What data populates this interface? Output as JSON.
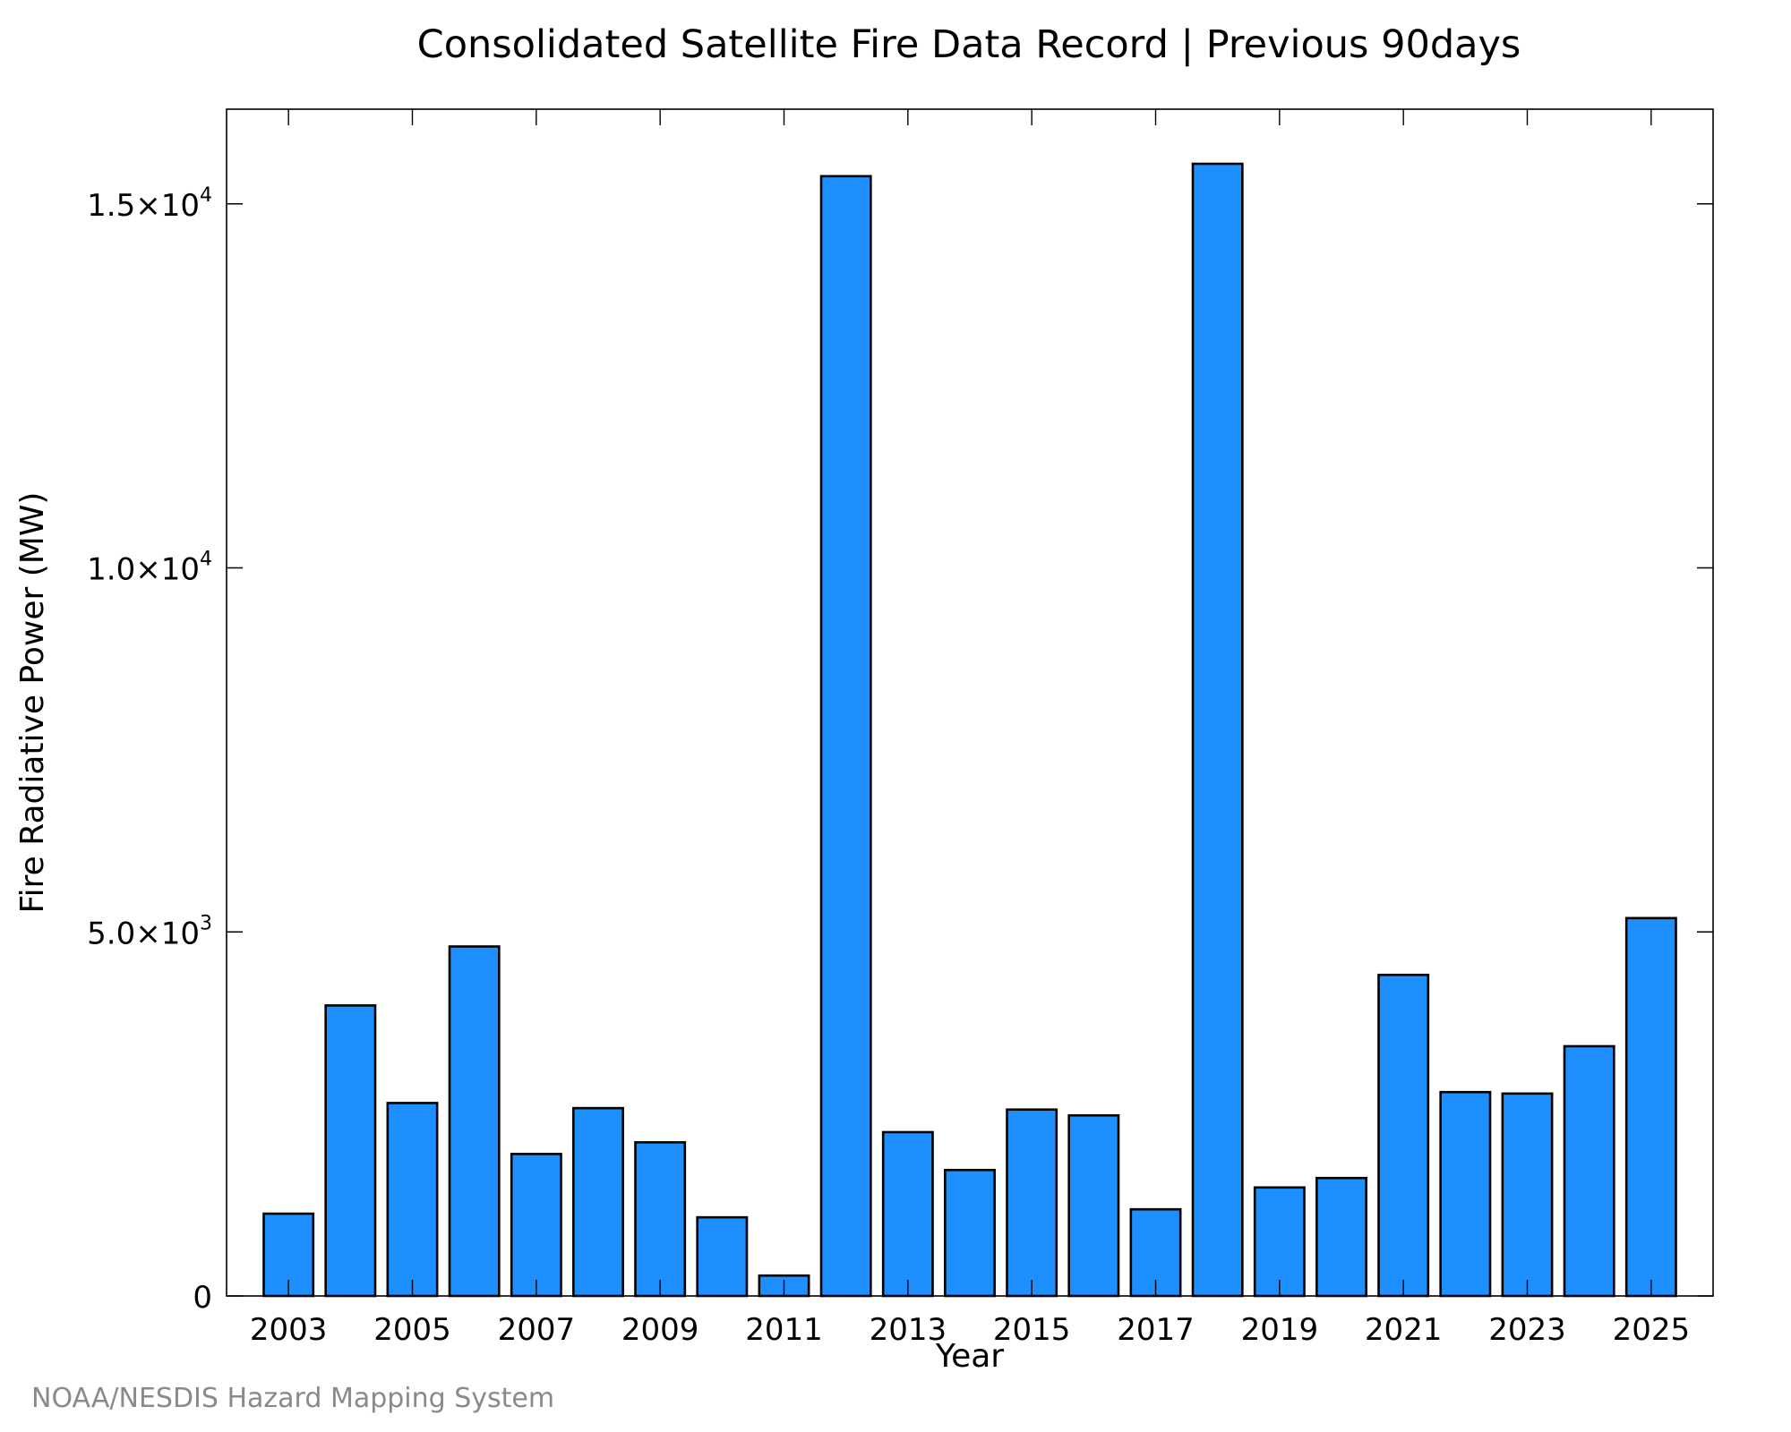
{
  "chart_data": {
    "type": "bar",
    "title": "Consolidated Satellite Fire Data Record | Previous 90days",
    "xlabel": "Year",
    "ylabel": "Fire Radiative Power (MW)",
    "source": "NOAA/NESDIS Hazard Mapping System",
    "categories": [
      2003,
      2004,
      2005,
      2006,
      2007,
      2008,
      2009,
      2010,
      2011,
      2012,
      2013,
      2014,
      2015,
      2016,
      2017,
      2018,
      2019,
      2020,
      2021,
      2022,
      2023,
      2024,
      2025
    ],
    "values": [
      1130,
      3990,
      2650,
      4800,
      1950,
      2580,
      2110,
      1080,
      280,
      15380,
      2250,
      1730,
      2560,
      2480,
      1190,
      15550,
      1490,
      1620,
      4410,
      2800,
      2780,
      3430,
      5190
    ],
    "xticks": [
      {
        "value": 2003,
        "label": "2003"
      },
      {
        "value": 2005,
        "label": "2005"
      },
      {
        "value": 2007,
        "label": "2007"
      },
      {
        "value": 2009,
        "label": "2009"
      },
      {
        "value": 2011,
        "label": "2011"
      },
      {
        "value": 2013,
        "label": "2013"
      },
      {
        "value": 2015,
        "label": "2015"
      },
      {
        "value": 2017,
        "label": "2017"
      },
      {
        "value": 2019,
        "label": "2019"
      },
      {
        "value": 2021,
        "label": "2021"
      },
      {
        "value": 2023,
        "label": "2023"
      },
      {
        "value": 2025,
        "label": "2025"
      }
    ],
    "yticks": [
      {
        "value": 0,
        "mantissa": "0",
        "exponent": ""
      },
      {
        "value": 5000,
        "mantissa": "5.0×10",
        "exponent": "3"
      },
      {
        "value": 10000,
        "mantissa": "1.0×10",
        "exponent": "4"
      },
      {
        "value": 15000,
        "mantissa": "1.5×10",
        "exponent": "4"
      }
    ],
    "xlim": [
      2002,
      2026
    ],
    "ylim": [
      0,
      16300
    ],
    "grid": false,
    "legend": "none",
    "bar_color": "#1e8fff",
    "edge_color": "#000000"
  }
}
